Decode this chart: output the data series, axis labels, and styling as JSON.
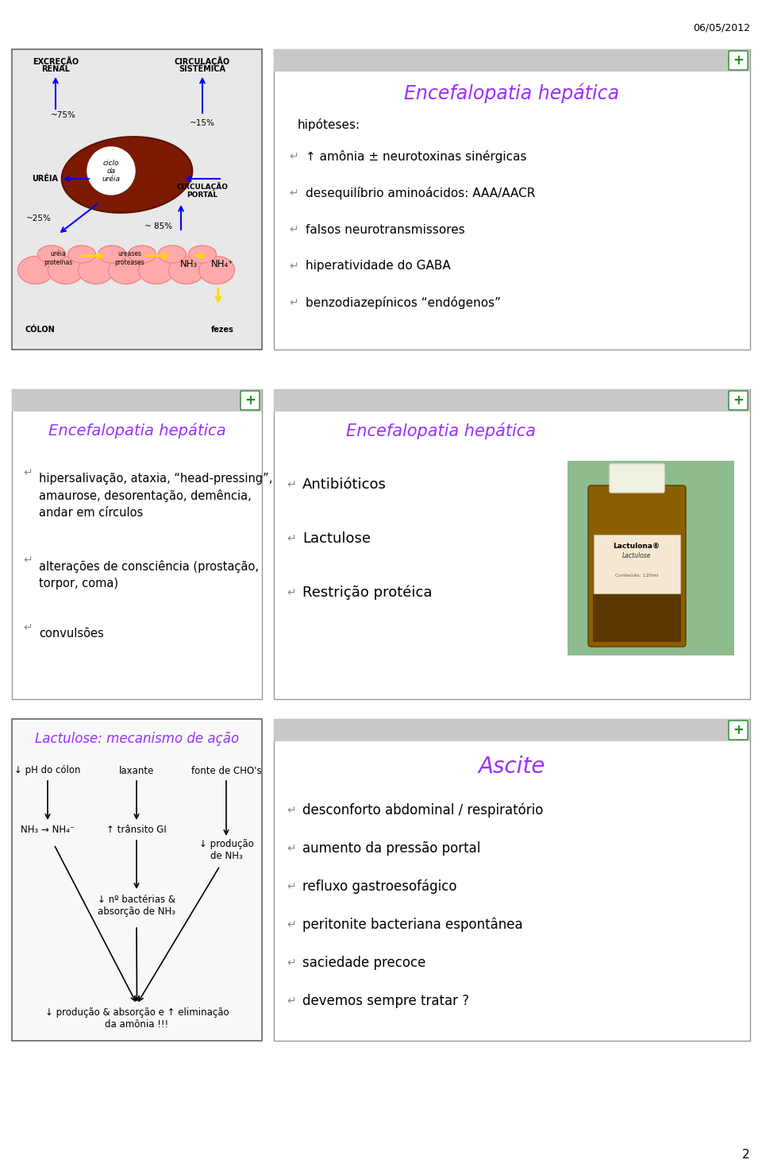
{
  "date_text": "06/05/2012",
  "page_num": "2",
  "bg_color": "#ffffff",
  "purple": "#9B30FF",
  "black": "#000000",
  "panel2": {
    "title": "Encefalopatia hepática",
    "subtitle": "hipóteses:",
    "bullets": [
      "↑ amônia ± neurotoxinas sinérgicas",
      "desequilíbrio aminoácidos: AAA/AACR",
      "falsos neurotransmissores",
      "hiperatividade do GABA",
      "benzodiazepínicos “endógenos”"
    ]
  },
  "panel3": {
    "title": "Encefalopatia hepática",
    "bullets": [
      "hipersalivação, ataxia, “head-pressing”,\namaurose, desorentação, demência,\nandar em círculos",
      "alterações de consciência (prostação,\ntorpor, coma)",
      "convulsões"
    ]
  },
  "panel4": {
    "title": "Encefalopatia hepática",
    "bullets": [
      "Antibióticos",
      "Lactulose",
      "Restrição protéica"
    ]
  },
  "panel5": {
    "title": "Lactulose: mecanismo de ação",
    "col1_top": "↓ pH do cólon",
    "col2_top": "laxante",
    "col3_top": "fonte de CHO's",
    "col2_mid": "↑ trânsito GI",
    "col1_mid": "NH₃ → NH₄⁻",
    "col3_mid": "↓ produção\nde NH₃",
    "col2_bot": "↓ nº bactérias &\nabsorção de NH₃",
    "bottom": "↓ produção & absorção e ↑ eliminação\nda amônia !!!"
  },
  "panel6": {
    "title": "Ascite",
    "bullets": [
      "desconforto abdominal / respiratório",
      "aumento da pressão portal",
      "refluxo gastroesofágico",
      "peritonite bacteriana espontânea",
      "saciedade precoce",
      "devemos sempre tratar ?"
    ]
  }
}
